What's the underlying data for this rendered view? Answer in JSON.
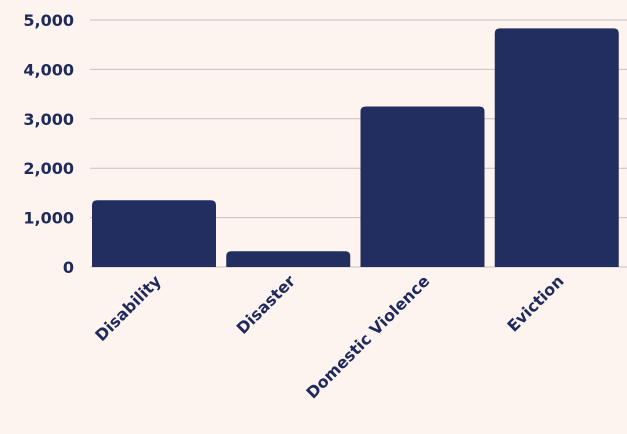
{
  "chart_data": {
    "type": "bar",
    "title": "",
    "xlabel": "",
    "ylabel": "",
    "categories": [
      "Disability",
      "Disaster",
      "Domestic Violence",
      "Eviction"
    ],
    "values": [
      1350,
      320,
      3250,
      4830
    ],
    "ylim": [
      0,
      5000
    ],
    "yticks": [
      0,
      1000,
      2000,
      3000,
      4000,
      5000
    ],
    "ytick_labels": [
      "0",
      "1,000",
      "2,000",
      "3,000",
      "4,000",
      "5,000"
    ],
    "grid": true,
    "legend": "none",
    "colors": {
      "bar": "#222e60",
      "text": "#1f2a5c",
      "grid": "#c9bfc3",
      "background": "#fdf3ef"
    }
  }
}
